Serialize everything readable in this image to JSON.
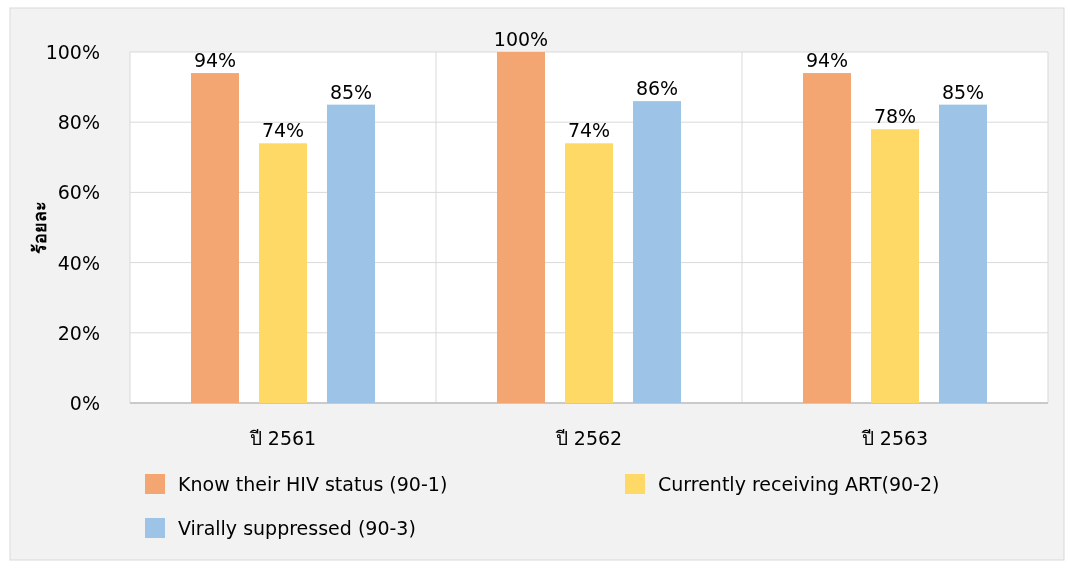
{
  "chart_data": {
    "type": "bar",
    "ylabel": "ร้อยละ",
    "categories": [
      "ปี 2561",
      "ปี 2562",
      "ปี 2563"
    ],
    "series": [
      {
        "name": "Know their HIV status (90-1)",
        "color": "#f4a672",
        "values": [
          94,
          100,
          94
        ],
        "value_labels": [
          "94%",
          "100%",
          "94%"
        ]
      },
      {
        "name": "Currently receiving ART(90-2)",
        "color": "#ffd966",
        "values": [
          74,
          74,
          78
        ],
        "value_labels": [
          "74%",
          "74%",
          "78%"
        ]
      },
      {
        "name": "Virally suppressed (90-3)",
        "color": "#9dc3e6",
        "values": [
          85,
          86,
          85
        ],
        "value_labels": [
          "85%",
          "86%",
          "85%"
        ]
      }
    ],
    "ylim": [
      0,
      100
    ],
    "yticks": [
      {
        "value": 0,
        "label": "0%"
      },
      {
        "value": 20,
        "label": "20%"
      },
      {
        "value": 40,
        "label": "40%"
      },
      {
        "value": 60,
        "label": "60%"
      },
      {
        "value": 80,
        "label": "80%"
      },
      {
        "value": 100,
        "label": "100%"
      }
    ],
    "grid": true,
    "legend": "bottom"
  }
}
